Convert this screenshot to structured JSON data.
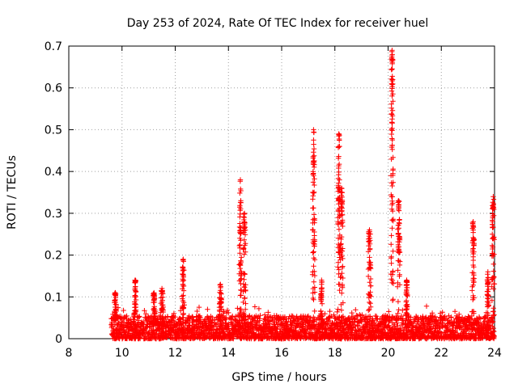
{
  "chart_data": {
    "type": "scatter",
    "title": "Day 253 of 2024, Rate Of TEC Index for receiver huel",
    "xlabel": "GPS time / hours",
    "ylabel": "ROTI / TECUs",
    "xlim": [
      8,
      24
    ],
    "ylim": [
      0,
      0.7
    ],
    "x_ticks": [
      8,
      10,
      12,
      14,
      16,
      18,
      20,
      22,
      24
    ],
    "y_ticks": [
      0,
      0.1,
      0.2,
      0.3,
      0.4,
      0.5,
      0.6,
      0.7
    ],
    "x_tick_labels": [
      "8",
      "10",
      "12",
      "14",
      "16",
      "18",
      "20",
      "22",
      "24"
    ],
    "y_tick_labels": [
      "0",
      "0.1",
      "0.2",
      "0.3",
      "0.4",
      "0.5",
      "0.6",
      "0.7"
    ],
    "grid": true,
    "marker": "+",
    "marker_color": "#ff0000",
    "baseline": {
      "x_start": 9.6,
      "x_end": 24,
      "typical_range": [
        0,
        0.05
      ]
    },
    "bursts": [
      {
        "x": 9.75,
        "peak": 0.11
      },
      {
        "x": 10.5,
        "peak": 0.14
      },
      {
        "x": 11.2,
        "peak": 0.11
      },
      {
        "x": 11.5,
        "peak": 0.12
      },
      {
        "x": 12.3,
        "peak": 0.19
      },
      {
        "x": 13.7,
        "peak": 0.13
      },
      {
        "x": 14.45,
        "peak": 0.38
      },
      {
        "x": 14.6,
        "peak": 0.3
      },
      {
        "x": 17.2,
        "peak": 0.5
      },
      {
        "x": 17.5,
        "peak": 0.14
      },
      {
        "x": 18.15,
        "peak": 0.49
      },
      {
        "x": 18.25,
        "peak": 0.36
      },
      {
        "x": 19.3,
        "peak": 0.26
      },
      {
        "x": 20.15,
        "peak": 0.69
      },
      {
        "x": 20.4,
        "peak": 0.33
      },
      {
        "x": 20.7,
        "peak": 0.14
      },
      {
        "x": 23.2,
        "peak": 0.28
      },
      {
        "x": 23.75,
        "peak": 0.16
      },
      {
        "x": 23.95,
        "peak": 0.34
      }
    ]
  }
}
